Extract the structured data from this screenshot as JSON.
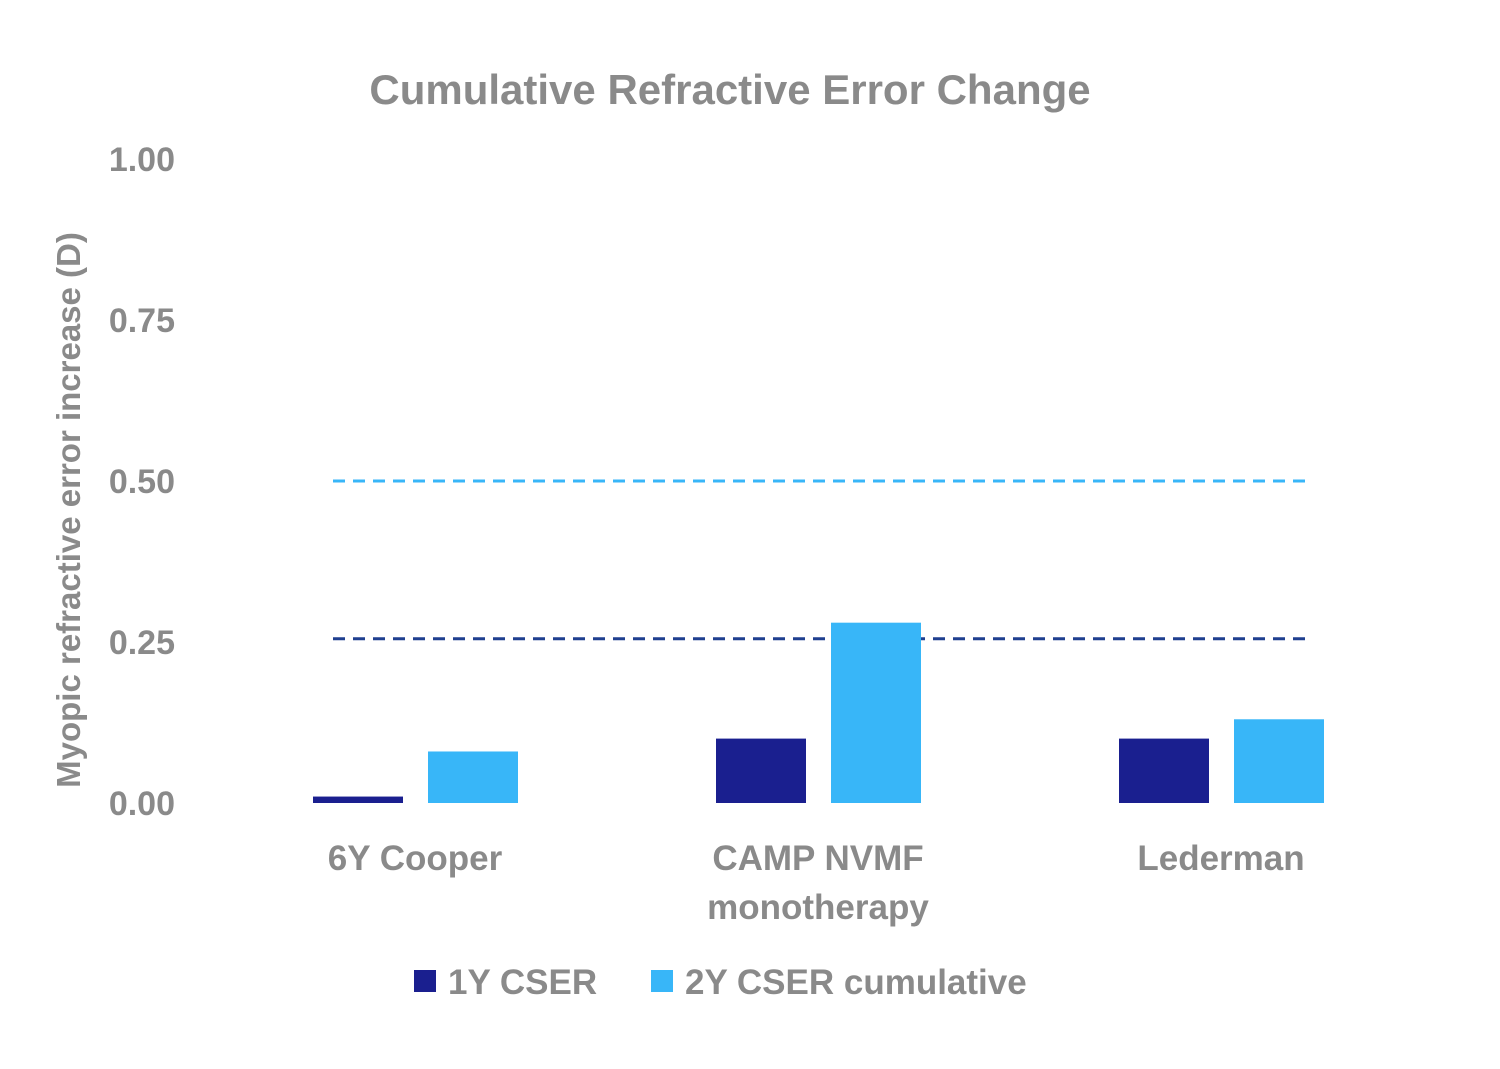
{
  "chart_data": {
    "type": "bar",
    "title": "Cumulative Refractive Error Change",
    "ylabel": "Myopic refractive error increase (D)",
    "xlabel": "",
    "ylim": [
      0,
      1.0
    ],
    "yticks": [
      "0.00",
      "0.25",
      "0.50",
      "0.75",
      "1.00"
    ],
    "categories": [
      [
        "6Y Cooper"
      ],
      [
        "CAMP NVMF",
        "monotherapy"
      ],
      [
        "Lederman"
      ]
    ],
    "series": [
      {
        "name": "1Y CSER",
        "color": "#1a1f8f",
        "values": [
          0.01,
          0.1,
          0.1
        ]
      },
      {
        "name": "2Y CSER cumulative",
        "color": "#38b6f8",
        "values": [
          0.08,
          0.28,
          0.13
        ]
      }
    ],
    "reference_lines": [
      {
        "value": 0.5,
        "color": "#38b6f8",
        "style": "dashed"
      },
      {
        "value": 0.255,
        "color": "#1f3f8f",
        "style": "dashed"
      }
    ],
    "grid": false,
    "legend_position": "bottom"
  }
}
